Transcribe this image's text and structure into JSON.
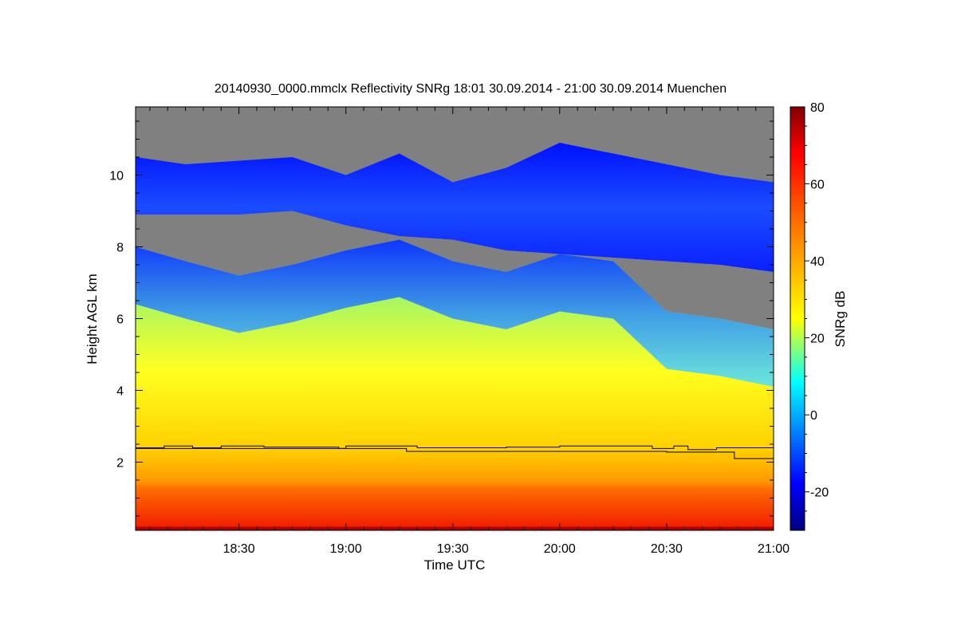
{
  "chart_data": {
    "type": "heatmap",
    "title": "20140930_0000.mmclx Reflectivity SNRg   18:01 30.09.2014 - 21:00 30.09.2014 Muenchen",
    "xlabel": "Time UTC",
    "ylabel": "Height AGL km",
    "x_tick_labels": [
      "18:30",
      "19:00",
      "19:30",
      "20:00",
      "20:30",
      "21:00"
    ],
    "x_tick_minutes": [
      1110,
      1140,
      1170,
      1200,
      1230,
      1260
    ],
    "xlim_minutes": [
      1081,
      1260
    ],
    "y_ticks": [
      2,
      4,
      6,
      8,
      10
    ],
    "ylim": [
      0.1,
      11.9
    ],
    "colorbar": {
      "label": "SNRg dB",
      "ticks": [
        80,
        60,
        40,
        20,
        0,
        -20
      ],
      "range": [
        -30,
        80
      ]
    },
    "no_signal_color": "#808080",
    "boundaries": {
      "time": [
        1081,
        1095,
        1110,
        1125,
        1140,
        1155,
        1170,
        1185,
        1200,
        1215,
        1230,
        1245,
        1260
      ],
      "cloud_top_km": [
        10.5,
        10.3,
        10.4,
        10.5,
        10.0,
        10.6,
        9.8,
        10.2,
        10.9,
        10.6,
        10.3,
        10.0,
        9.8
      ],
      "upper_cloud_base_km": [
        8.9,
        8.9,
        8.9,
        9.0,
        8.6,
        8.3,
        8.2,
        7.9,
        7.8,
        7.7,
        7.6,
        7.5,
        7.3
      ],
      "lower_cloud_top_km": [
        8.0,
        7.6,
        7.2,
        7.5,
        7.9,
        8.2,
        7.6,
        7.3,
        7.8,
        7.6,
        6.2,
        6.0,
        5.7
      ]
    },
    "lines_km": {
      "line_1": {
        "time": [
          1081,
          1089,
          1097,
          1105,
          1117,
          1133,
          1138,
          1140,
          1152,
          1160,
          1185,
          1200,
          1214,
          1226,
          1232,
          1236,
          1244,
          1260
        ],
        "height": [
          2.4,
          2.45,
          2.4,
          2.45,
          2.42,
          2.42,
          2.38,
          2.45,
          2.45,
          2.4,
          2.42,
          2.45,
          2.45,
          2.38,
          2.45,
          2.35,
          2.4,
          2.45
        ]
      },
      "line_2": {
        "time": [
          1081,
          1155,
          1157,
          1228,
          1230,
          1248,
          1249,
          1260
        ],
        "height": [
          2.38,
          2.38,
          2.3,
          2.3,
          2.28,
          2.28,
          2.1,
          2.1
        ]
      }
    }
  }
}
